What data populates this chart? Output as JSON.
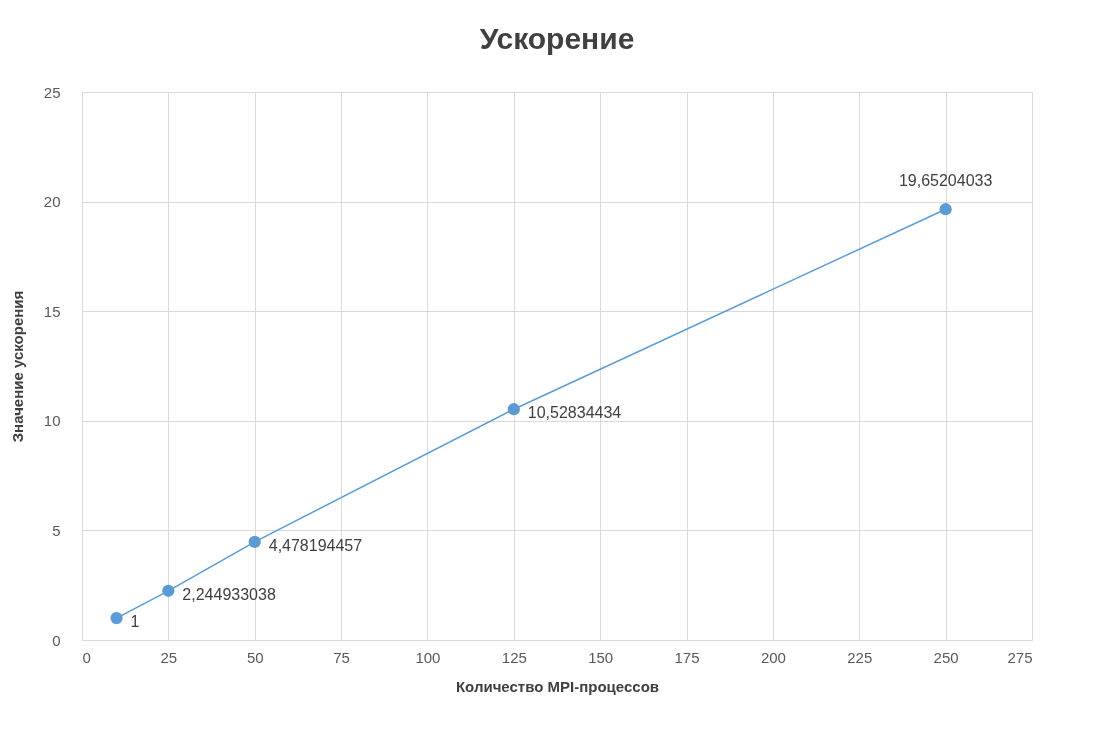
{
  "chart_data": {
    "type": "line",
    "title": "Ускорение",
    "xlabel": "Количество MPI-процессов",
    "ylabel": "Значение ускорения",
    "x": [
      10,
      25,
      50,
      125,
      250
    ],
    "series": [
      {
        "color": "#5b9bd5",
        "values": [
          1,
          2.244933038,
          4.478194457,
          10.52834434,
          19.65204033
        ],
        "value_labels": [
          "1",
          "2,244933038",
          "4,478194457",
          "10,52834434",
          "19,65204033"
        ]
      }
    ],
    "xlim": [
      0,
      275
    ],
    "xticks": [
      0,
      25,
      50,
      75,
      100,
      125,
      150,
      175,
      200,
      225,
      250,
      275
    ],
    "ylim": [
      0,
      25
    ],
    "yticks": [
      0,
      5,
      10,
      15,
      20,
      25
    ],
    "grid": true,
    "marker": "circle",
    "line_style": "solid"
  }
}
